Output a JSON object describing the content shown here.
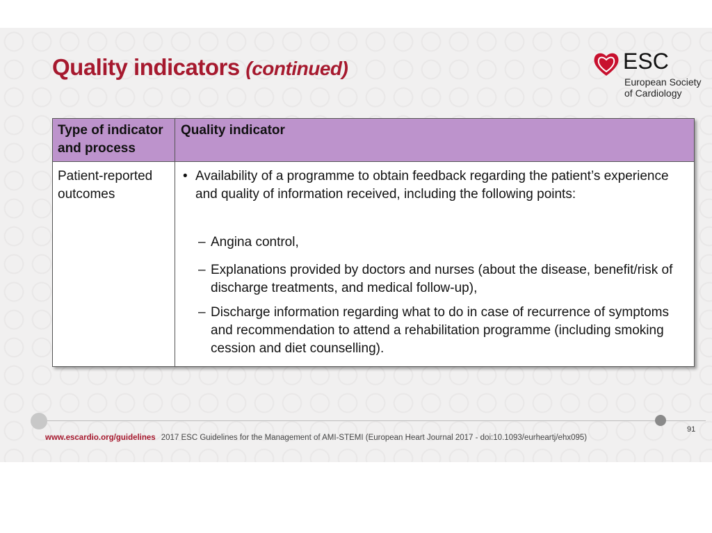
{
  "title": {
    "main": "Quality indicators",
    "suffix": "(continued)"
  },
  "logo": {
    "name": "ESC",
    "line1": "European Society",
    "line2": "of Cardiology"
  },
  "table": {
    "headers": [
      "Type of indicator and process",
      "Quality indicator"
    ],
    "row": {
      "type": "Patient-reported outcomes",
      "bullet": "Availability of a programme to obtain feedback regarding the patient’s experience and quality of information received, including the following points:",
      "subitems": [
        "Angina control,",
        "Explanations provided by doctors and nurses (about the disease, benefit/risk of discharge treatments, and medical follow-up),",
        "Discharge information regarding what to do in case of recurrence of symptoms and recommendation to attend a rehabilitation programme (including smoking cession and diet counselling)."
      ]
    }
  },
  "footer": {
    "url": "www.escardio.org/guidelines",
    "citation": "2017 ESC Guidelines for the Management of AMI-STEMI (European Heart Journal 2017 - doi:10.1093/eurheartj/ehx095)",
    "page": "91"
  }
}
